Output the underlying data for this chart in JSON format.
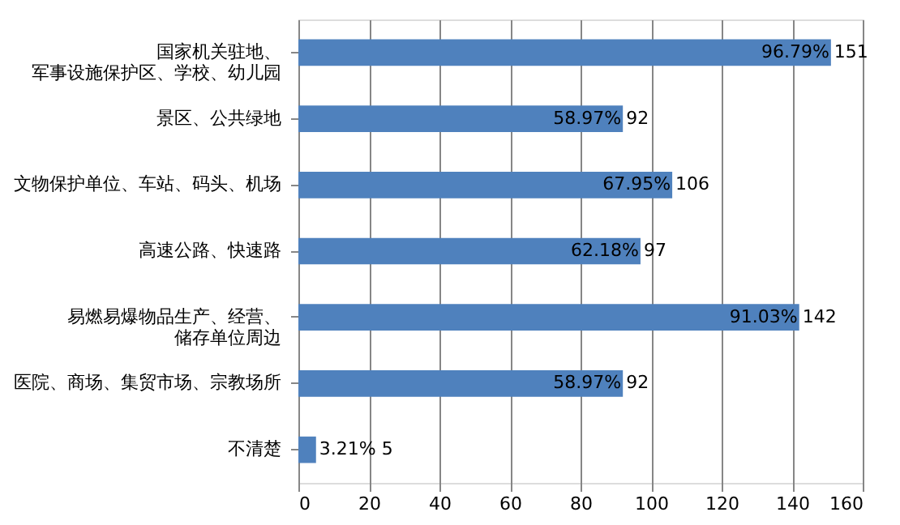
{
  "chart_data": {
    "type": "bar",
    "orientation": "horizontal",
    "categories": [
      "国家机关驻地、军事设施保护区、学校、幼儿园",
      "景区、公共绿地",
      "文物保护单位、车站、码头、机场",
      "高速公路、快速路",
      "易燃易爆物品生产、经营、储存单位周边",
      "医院、商场、集贸市场、宗教场所",
      "不清楚"
    ],
    "values": [
      151,
      92,
      106,
      97,
      142,
      92,
      5
    ],
    "value_labels": [
      "96.79% 151",
      "58.97% 92",
      "67.95% 106",
      "62.18% 97",
      "91.03% 142",
      "58.97% 92",
      "3.21% 5"
    ],
    "color": "#4f81bd",
    "xlim": [
      0,
      160
    ],
    "xticks": [
      0,
      20,
      40,
      60,
      80,
      100,
      120,
      140,
      160
    ],
    "grid": "x"
  }
}
